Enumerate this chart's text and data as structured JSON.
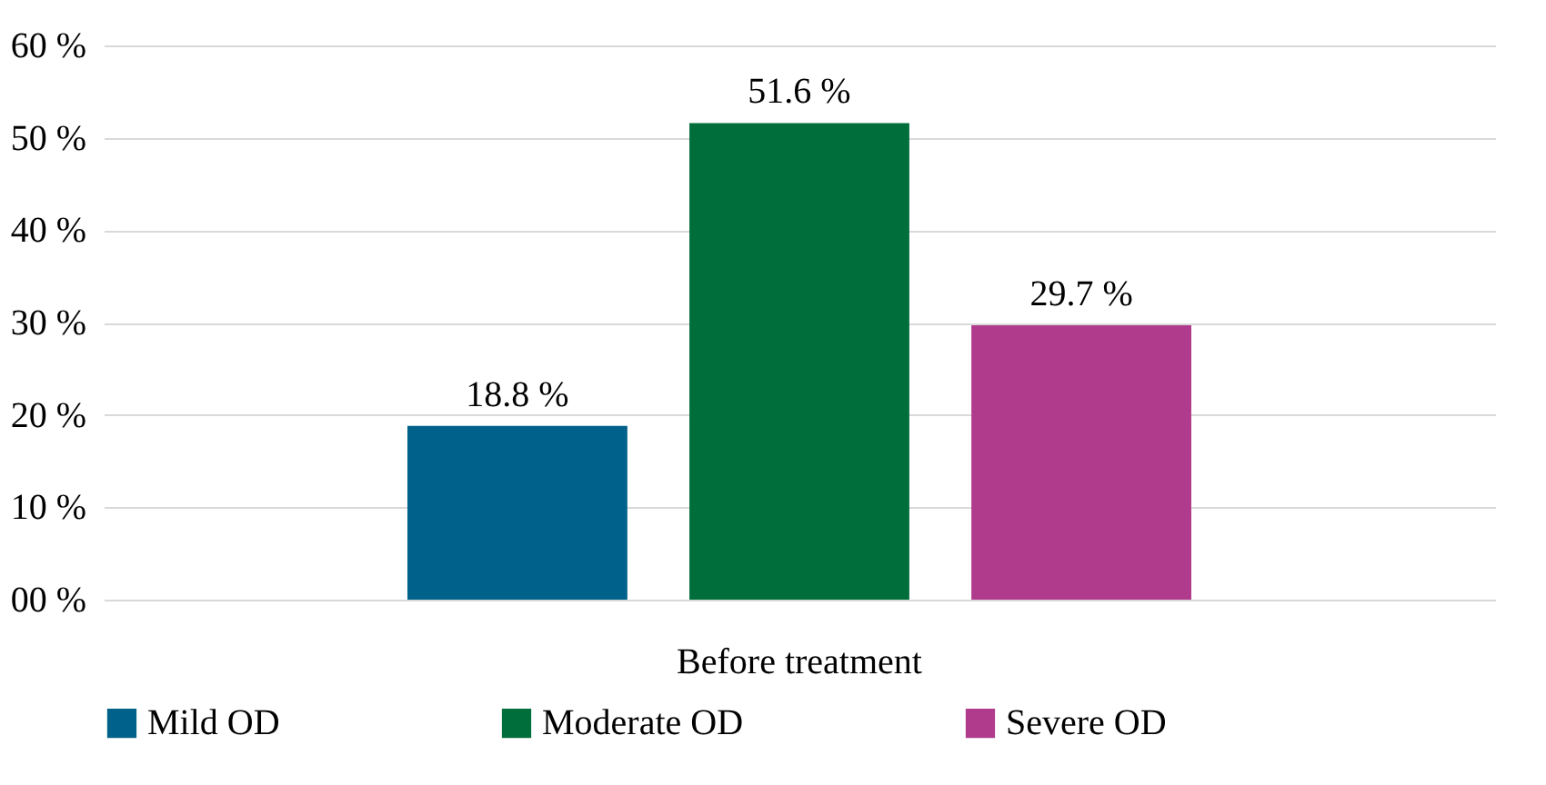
{
  "chart_data": {
    "type": "bar",
    "categories": [
      "Before treatment"
    ],
    "series": [
      {
        "name": "Mild OD",
        "color": "#00628a",
        "values": [
          18.8
        ],
        "value_labels": [
          "18.8 %"
        ]
      },
      {
        "name": "Moderate OD",
        "color": "#006e3a",
        "values": [
          51.6
        ],
        "value_labels": [
          "51.6 %"
        ]
      },
      {
        "name": "Severe OD",
        "color": "#b03a8c",
        "values": [
          29.7
        ],
        "value_labels": [
          "29.7 %"
        ]
      }
    ],
    "ylim": [
      0,
      60
    ],
    "yticks": [
      {
        "value": 0,
        "label": "00 %"
      },
      {
        "value": 10,
        "label": "10 %"
      },
      {
        "value": 20,
        "label": "20 %"
      },
      {
        "value": 30,
        "label": "30 %"
      },
      {
        "value": 40,
        "label": "40 %"
      },
      {
        "value": 50,
        "label": "50 %"
      },
      {
        "value": 60,
        "label": "60 %"
      }
    ],
    "grid": "y",
    "legend": "bottom"
  }
}
